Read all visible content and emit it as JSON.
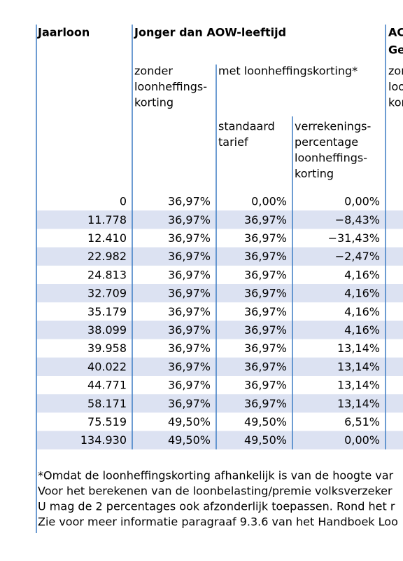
{
  "table": {
    "headers": {
      "jaarloon": "Jaarloon",
      "jonger": "Jonger dan AOW-leeftijd",
      "aow": [
        "AC",
        "Ge"
      ],
      "zonder": [
        "zonder",
        "loonheffings-",
        "korting"
      ],
      "met": "met loonheffingskorting*",
      "aow_sub": [
        "zor",
        "loo",
        "kor"
      ],
      "standaard": [
        "standaard",
        "tarief"
      ],
      "verrekenings": [
        "verrekenings-",
        "percentage",
        "loonheffings-",
        "korting"
      ]
    },
    "rows": [
      [
        "0",
        "36,97%",
        "0,00%",
        "0,00%"
      ],
      [
        "11.778",
        "36,97%",
        "36,97%",
        "−8,43%"
      ],
      [
        "12.410",
        "36,97%",
        "36,97%",
        "−31,43%"
      ],
      [
        "22.982",
        "36,97%",
        "36,97%",
        "−2,47%"
      ],
      [
        "24.813",
        "36,97%",
        "36,97%",
        "4,16%"
      ],
      [
        "32.709",
        "36,97%",
        "36,97%",
        "4,16%"
      ],
      [
        "35.179",
        "36,97%",
        "36,97%",
        "4,16%"
      ],
      [
        "38.099",
        "36,97%",
        "36,97%",
        "4,16%"
      ],
      [
        "39.958",
        "36,97%",
        "36,97%",
        "13,14%"
      ],
      [
        "40.022",
        "36,97%",
        "36,97%",
        "13,14%"
      ],
      [
        "44.771",
        "36,97%",
        "36,97%",
        "13,14%"
      ],
      [
        "58.171",
        "36,97%",
        "36,97%",
        "13,14%"
      ],
      [
        "75.519",
        "49,50%",
        "49,50%",
        "6,51%"
      ],
      [
        "134.930",
        "49,50%",
        "49,50%",
        "0,00%"
      ]
    ]
  },
  "footnote": [
    "*Omdat de loonheffingskorting afhankelijk is van de hoogte var",
    "Voor het berekenen van de loonbelasting/premie volksverzeker",
    "U mag de 2 percentages ook afzonderlijk toepassen. Rond het r",
    "Zie voor meer informatie paragraaf 9.3.6 van het Handboek Loo"
  ]
}
